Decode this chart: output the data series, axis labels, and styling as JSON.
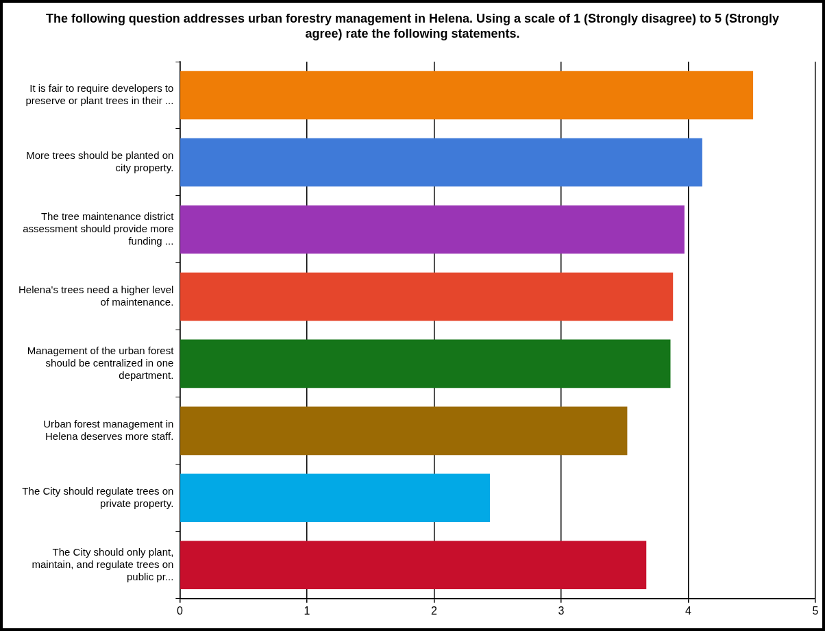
{
  "chart_data": {
    "type": "bar",
    "orientation": "horizontal",
    "title": "The following question addresses urban forestry management in Helena.  Using a scale of 1 (Strongly disagree) to 5 (Strongly agree) rate the following statements.",
    "categories": [
      "It is fair to require developers to preserve or plant trees in their ...",
      "More trees should be planted on city property.",
      "The tree maintenance district assessment should provide more funding ...",
      "Helena's trees need a higher level of maintenance.",
      "Management of the urban forest should be centralized in one department.",
      "Urban forest management in Helena deserves more staff.",
      "The City should regulate trees on private property.",
      "The City should only plant, maintain, and regulate trees on public pr..."
    ],
    "values": [
      4.51,
      4.11,
      3.97,
      3.88,
      3.86,
      3.52,
      2.44,
      3.67
    ],
    "colors": [
      "#ef7d06",
      "#3f7ad8",
      "#9a35b5",
      "#e5462c",
      "#157519",
      "#9b6a04",
      "#02a9e6",
      "#c70f2c"
    ],
    "xlim": [
      0,
      5
    ],
    "xticks": [
      0,
      1,
      2,
      3,
      4,
      5
    ],
    "grid": "x",
    "legend": false
  }
}
